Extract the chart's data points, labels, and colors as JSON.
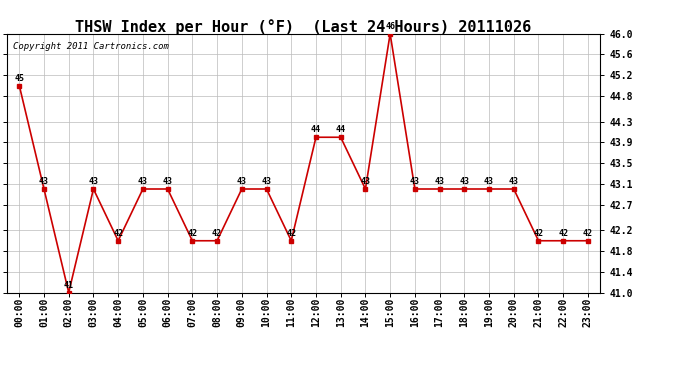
{
  "title": "THSW Index per Hour (°F)  (Last 24 Hours) 20111026",
  "copyright": "Copyright 2011 Cartronics.com",
  "hours": [
    "00:00",
    "01:00",
    "02:00",
    "03:00",
    "04:00",
    "05:00",
    "06:00",
    "07:00",
    "08:00",
    "09:00",
    "10:00",
    "11:00",
    "12:00",
    "13:00",
    "14:00",
    "15:00",
    "16:00",
    "17:00",
    "18:00",
    "19:00",
    "20:00",
    "21:00",
    "22:00",
    "23:00"
  ],
  "values": [
    45,
    43,
    41,
    43,
    42,
    43,
    43,
    42,
    42,
    43,
    43,
    42,
    44,
    44,
    43,
    46,
    43,
    43,
    43,
    43,
    43,
    42,
    42,
    42
  ],
  "ylim_min": 41.0,
  "ylim_max": 46.0,
  "yticks": [
    41.0,
    41.4,
    41.8,
    42.2,
    42.7,
    43.1,
    43.5,
    43.9,
    44.3,
    44.8,
    45.2,
    45.6,
    46.0
  ],
  "line_color": "#cc0000",
  "marker_color": "#cc0000",
  "grid_color": "#bbbbbb",
  "bg_color": "#ffffff",
  "title_fontsize": 11,
  "tick_fontsize": 7,
  "annot_fontsize": 6,
  "copyright_fontsize": 6.5
}
